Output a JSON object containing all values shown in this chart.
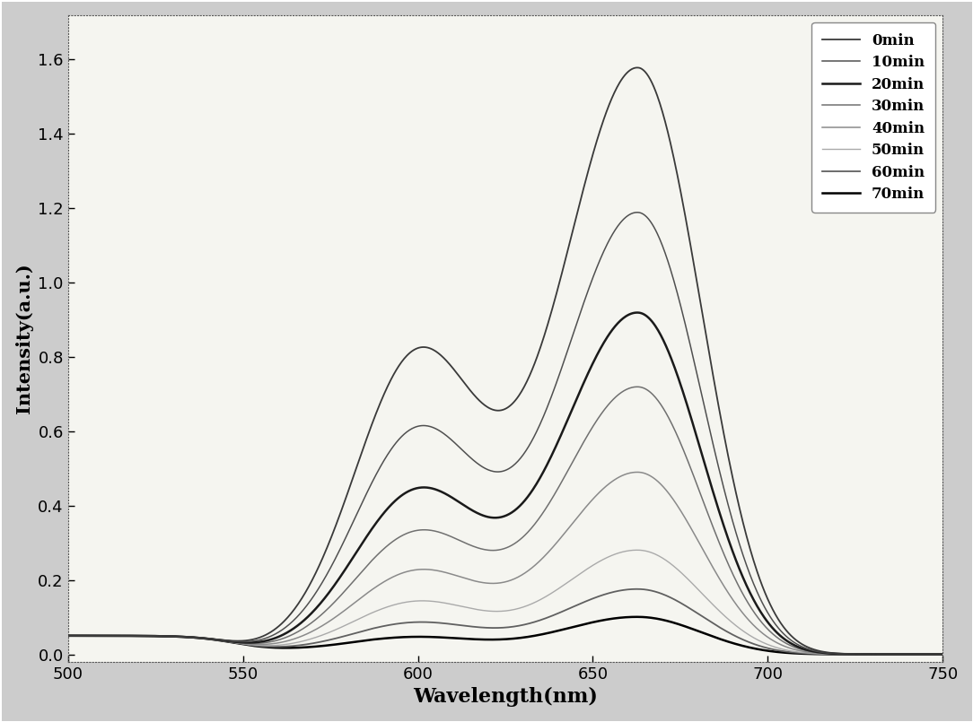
{
  "xlabel": "Wavelength(nm)",
  "ylabel": "Intensity(a.u.)",
  "xlim": [
    500,
    750
  ],
  "ylim": [
    -0.02,
    1.72
  ],
  "yticks": [
    0.0,
    0.2,
    0.4,
    0.6,
    0.8,
    1.0,
    1.2,
    1.4,
    1.6
  ],
  "xticks": [
    500,
    550,
    600,
    650,
    700,
    750
  ],
  "legend_labels": [
    "0min",
    "10min",
    "20min",
    "30min",
    "40min",
    "50min",
    "60min",
    "70min"
  ],
  "peak1_heights": [
    0.93,
    0.69,
    0.5,
    0.37,
    0.25,
    0.155,
    0.09,
    0.045
  ],
  "peak2_heights": [
    1.58,
    1.19,
    0.92,
    0.72,
    0.49,
    0.28,
    0.175,
    0.1
  ],
  "colors": [
    "#3a3a3a",
    "#505050",
    "#1a1a1a",
    "#707070",
    "#8a8a8a",
    "#aaaaaa",
    "#606060",
    "#000000"
  ],
  "linewidths": [
    1.3,
    1.1,
    1.8,
    1.1,
    1.1,
    1.0,
    1.3,
    1.8
  ],
  "background_color": "#f5f5f0",
  "figure_facecolor": "#cccccc"
}
